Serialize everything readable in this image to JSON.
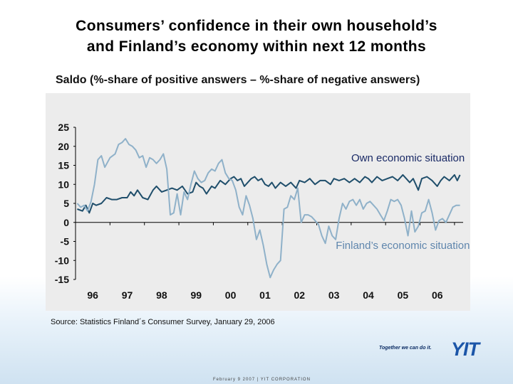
{
  "title": {
    "line1": "Consumers’ confidence in their own household’s",
    "line2": "and Finland’s economy within next 12 months"
  },
  "subtitle": "Saldo (%-share of positive answers – %-share of negative answers)",
  "source": "Source: Statistics Finland´s Consumer Survey,  January 29, 2006",
  "logo": {
    "slogan": "Together we can do it.",
    "mark": "YIT"
  },
  "footer": "February 9 2007  |  YIT CORPORATION",
  "colors": {
    "background": "#ececec",
    "own_series": "#1f4e6b",
    "finland_series": "#8fb1c9",
    "axis": "#000000"
  },
  "chart_data": {
    "type": "line",
    "title": "Consumers’ confidence in their own household’s and Finland’s economy within next 12 months",
    "ylabel": "Saldo (%-share of positive answers – %-share of negative answers)",
    "xlabel": "",
    "ylim": [
      -15,
      25
    ],
    "xlim": [
      1995.5,
      2006.75
    ],
    "yticks": [
      25,
      20,
      15,
      10,
      5,
      0,
      -5,
      -10,
      -15
    ],
    "xticks": [
      {
        "label": "96",
        "pos": 1996.0
      },
      {
        "label": "97",
        "pos": 1997.0
      },
      {
        "label": "98",
        "pos": 1998.0
      },
      {
        "label": "99",
        "pos": 1999.0
      },
      {
        "label": "00",
        "pos": 2000.0
      },
      {
        "label": "01",
        "pos": 2001.0
      },
      {
        "label": "02",
        "pos": 2002.0
      },
      {
        "label": "03",
        "pos": 2003.0
      },
      {
        "label": "04",
        "pos": 2004.0
      },
      {
        "label": "05",
        "pos": 2005.0
      },
      {
        "label": "06",
        "pos": 2006.0
      }
    ],
    "series": [
      {
        "name": "Own economic situation",
        "label_anchor": [
          2005.15,
          16.0
        ],
        "points": [
          [
            1995.55,
            3.5
          ],
          [
            1995.7,
            3.0
          ],
          [
            1995.8,
            4.5
          ],
          [
            1995.9,
            2.5
          ],
          [
            1996.0,
            5.0
          ],
          [
            1996.1,
            4.5
          ],
          [
            1996.25,
            5.0
          ],
          [
            1996.4,
            6.5
          ],
          [
            1996.55,
            6.0
          ],
          [
            1996.7,
            6.0
          ],
          [
            1996.85,
            6.5
          ],
          [
            1997.0,
            6.5
          ],
          [
            1997.1,
            8.0
          ],
          [
            1997.2,
            7.0
          ],
          [
            1997.3,
            8.5
          ],
          [
            1997.45,
            6.5
          ],
          [
            1997.6,
            6.0
          ],
          [
            1997.75,
            8.5
          ],
          [
            1997.85,
            9.5
          ],
          [
            1998.0,
            8.0
          ],
          [
            1998.15,
            8.5
          ],
          [
            1998.3,
            9.0
          ],
          [
            1998.45,
            8.5
          ],
          [
            1998.6,
            9.5
          ],
          [
            1998.75,
            7.5
          ],
          [
            1998.9,
            8.0
          ],
          [
            1999.0,
            10.5
          ],
          [
            1999.1,
            9.5
          ],
          [
            1999.2,
            9.0
          ],
          [
            1999.3,
            7.5
          ],
          [
            1999.45,
            9.5
          ],
          [
            1999.55,
            9.0
          ],
          [
            1999.7,
            11.0
          ],
          [
            1999.85,
            10.0
          ],
          [
            2000.0,
            11.5
          ],
          [
            2000.1,
            12.0
          ],
          [
            2000.2,
            11.0
          ],
          [
            2000.3,
            11.5
          ],
          [
            2000.4,
            9.5
          ],
          [
            2000.5,
            10.5
          ],
          [
            2000.6,
            11.5
          ],
          [
            2000.7,
            12.0
          ],
          [
            2000.8,
            11.0
          ],
          [
            2000.9,
            11.5
          ],
          [
            2001.0,
            10.0
          ],
          [
            2001.1,
            9.5
          ],
          [
            2001.2,
            10.5
          ],
          [
            2001.3,
            9.0
          ],
          [
            2001.45,
            10.5
          ],
          [
            2001.6,
            9.5
          ],
          [
            2001.75,
            10.5
          ],
          [
            2001.9,
            9.0
          ],
          [
            2002.0,
            11.0
          ],
          [
            2002.15,
            10.5
          ],
          [
            2002.3,
            11.5
          ],
          [
            2002.45,
            10.0
          ],
          [
            2002.6,
            11.0
          ],
          [
            2002.75,
            11.0
          ],
          [
            2002.9,
            10.0
          ],
          [
            2003.0,
            11.5
          ],
          [
            2003.15,
            11.0
          ],
          [
            2003.3,
            11.5
          ],
          [
            2003.45,
            10.5
          ],
          [
            2003.6,
            11.5
          ],
          [
            2003.75,
            10.5
          ],
          [
            2003.9,
            12.0
          ],
          [
            2004.0,
            11.5
          ],
          [
            2004.1,
            10.5
          ],
          [
            2004.25,
            12.0
          ],
          [
            2004.4,
            11.0
          ],
          [
            2004.55,
            11.5
          ],
          [
            2004.7,
            12.0
          ],
          [
            2004.85,
            11.0
          ],
          [
            2005.0,
            12.5
          ],
          [
            2005.1,
            11.5
          ],
          [
            2005.2,
            10.5
          ],
          [
            2005.3,
            11.5
          ],
          [
            2005.45,
            8.5
          ],
          [
            2005.55,
            11.5
          ],
          [
            2005.7,
            12.0
          ],
          [
            2005.85,
            11.0
          ],
          [
            2006.0,
            9.5
          ],
          [
            2006.1,
            11.0
          ],
          [
            2006.2,
            12.0
          ],
          [
            2006.35,
            11.0
          ],
          [
            2006.5,
            12.5
          ],
          [
            2006.58,
            11.0
          ],
          [
            2006.66,
            12.5
          ]
        ]
      },
      {
        "name": "Finland’s economic situation",
        "label_anchor": [
          2005.0,
          -7.0
        ],
        "points": [
          [
            1995.55,
            5.0
          ],
          [
            1995.65,
            4.0
          ],
          [
            1995.75,
            4.5
          ],
          [
            1995.85,
            3.0
          ],
          [
            1995.95,
            5.5
          ],
          [
            1996.05,
            10.0
          ],
          [
            1996.15,
            16.5
          ],
          [
            1996.25,
            17.5
          ],
          [
            1996.35,
            14.5
          ],
          [
            1996.5,
            17.0
          ],
          [
            1996.65,
            18.0
          ],
          [
            1996.75,
            20.5
          ],
          [
            1996.85,
            21.0
          ],
          [
            1996.95,
            22.0
          ],
          [
            1997.05,
            20.5
          ],
          [
            1997.15,
            20.0
          ],
          [
            1997.25,
            19.0
          ],
          [
            1997.35,
            17.0
          ],
          [
            1997.45,
            17.5
          ],
          [
            1997.55,
            14.5
          ],
          [
            1997.65,
            17.0
          ],
          [
            1997.75,
            16.5
          ],
          [
            1997.85,
            15.5
          ],
          [
            1997.95,
            16.5
          ],
          [
            1998.05,
            18.0
          ],
          [
            1998.15,
            14.0
          ],
          [
            1998.25,
            2.0
          ],
          [
            1998.35,
            2.5
          ],
          [
            1998.45,
            7.5
          ],
          [
            1998.55,
            2.0
          ],
          [
            1998.65,
            8.0
          ],
          [
            1998.75,
            6.0
          ],
          [
            1998.85,
            10.0
          ],
          [
            1998.95,
            13.5
          ],
          [
            1999.05,
            11.5
          ],
          [
            1999.15,
            10.5
          ],
          [
            1999.25,
            11.0
          ],
          [
            1999.35,
            13.0
          ],
          [
            1999.45,
            14.0
          ],
          [
            1999.55,
            13.5
          ],
          [
            1999.65,
            15.5
          ],
          [
            1999.75,
            16.5
          ],
          [
            1999.85,
            13.0
          ],
          [
            1999.95,
            11.5
          ],
          [
            2000.05,
            11.0
          ],
          [
            2000.15,
            8.5
          ],
          [
            2000.25,
            4.0
          ],
          [
            2000.35,
            2.0
          ],
          [
            2000.45,
            7.0
          ],
          [
            2000.55,
            4.5
          ],
          [
            2000.65,
            1.0
          ],
          [
            2000.75,
            -4.5
          ],
          [
            2000.85,
            -2.0
          ],
          [
            2000.95,
            -6.0
          ],
          [
            2001.05,
            -11.0
          ],
          [
            2001.15,
            -14.5
          ],
          [
            2001.25,
            -12.5
          ],
          [
            2001.35,
            -11.0
          ],
          [
            2001.45,
            -10.0
          ],
          [
            2001.55,
            3.5
          ],
          [
            2001.65,
            4.0
          ],
          [
            2001.75,
            7.0
          ],
          [
            2001.85,
            6.0
          ],
          [
            2001.95,
            9.0
          ],
          [
            2002.05,
            0.0
          ],
          [
            2002.15,
            2.0
          ],
          [
            2002.25,
            2.0
          ],
          [
            2002.35,
            1.5
          ],
          [
            2002.45,
            0.5
          ],
          [
            2002.55,
            -0.5
          ],
          [
            2002.65,
            -3.5
          ],
          [
            2002.75,
            -5.5
          ],
          [
            2002.85,
            -1.0
          ],
          [
            2002.95,
            -3.5
          ],
          [
            2003.05,
            -4.5
          ],
          [
            2003.15,
            1.0
          ],
          [
            2003.25,
            5.0
          ],
          [
            2003.35,
            3.5
          ],
          [
            2003.45,
            5.5
          ],
          [
            2003.55,
            6.0
          ],
          [
            2003.65,
            4.5
          ],
          [
            2003.75,
            6.0
          ],
          [
            2003.85,
            3.5
          ],
          [
            2003.95,
            5.0
          ],
          [
            2004.05,
            5.5
          ],
          [
            2004.15,
            4.5
          ],
          [
            2004.25,
            3.5
          ],
          [
            2004.35,
            2.0
          ],
          [
            2004.45,
            0.5
          ],
          [
            2004.55,
            3.0
          ],
          [
            2004.65,
            6.0
          ],
          [
            2004.75,
            5.5
          ],
          [
            2004.85,
            6.0
          ],
          [
            2004.95,
            4.5
          ],
          [
            2005.05,
            1.0
          ],
          [
            2005.15,
            -3.5
          ],
          [
            2005.25,
            3.0
          ],
          [
            2005.35,
            -2.5
          ],
          [
            2005.45,
            -1.0
          ],
          [
            2005.55,
            2.5
          ],
          [
            2005.65,
            3.0
          ],
          [
            2005.75,
            6.0
          ],
          [
            2005.85,
            2.5
          ],
          [
            2005.95,
            -2.0
          ],
          [
            2006.05,
            0.5
          ],
          [
            2006.15,
            1.0
          ],
          [
            2006.25,
            0.0
          ],
          [
            2006.35,
            2.0
          ],
          [
            2006.45,
            4.0
          ],
          [
            2006.55,
            4.5
          ],
          [
            2006.66,
            4.5
          ]
        ]
      }
    ]
  }
}
